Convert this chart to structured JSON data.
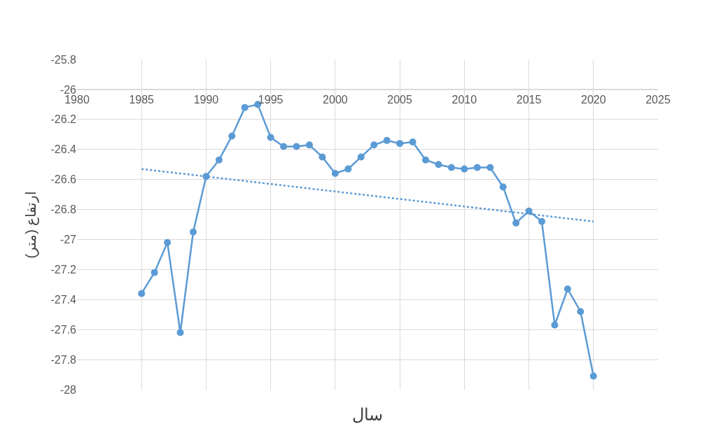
{
  "chart_data": {
    "type": "line",
    "xlabel": "سال",
    "ylabel": "ارتفاع (متر)",
    "x": [
      1985,
      1986,
      1987,
      1988,
      1989,
      1990,
      1991,
      1992,
      1993,
      1994,
      1995,
      1996,
      1997,
      1998,
      1999,
      2000,
      2001,
      2002,
      2003,
      2004,
      2005,
      2006,
      2007,
      2008,
      2009,
      2010,
      2011,
      2012,
      2013,
      2014,
      2015,
      2016,
      2017,
      2018,
      2019,
      2020
    ],
    "series": [
      {
        "color": "#5b9bd5",
        "marker": "circle",
        "line_style": "solid",
        "values": [
          -27.36,
          -27.22,
          -27.02,
          -27.62,
          -26.95,
          -26.58,
          -26.47,
          -26.31,
          -26.12,
          -26.1,
          -26.32,
          -26.38,
          -26.38,
          -26.37,
          -26.45,
          -26.56,
          -26.53,
          -26.45,
          -26.37,
          -26.34,
          -26.36,
          -26.35,
          -26.47,
          -26.5,
          -26.52,
          -26.53,
          -26.52,
          -26.52,
          -26.65,
          -26.89,
          -26.81,
          -26.88,
          -27.57,
          -27.33,
          -27.48,
          -27.91
        ]
      },
      {
        "type": "line",
        "color": "#5b9bd5",
        "marker": "none",
        "line_style": "dotted",
        "x": [
          1985,
          2020
        ],
        "values": [
          -26.53,
          -26.88
        ]
      }
    ],
    "xlim": [
      1980,
      2025
    ],
    "xticks": [
      1980,
      1985,
      1990,
      1995,
      2000,
      2005,
      2010,
      2015,
      2020,
      2025
    ],
    "ylim": [
      -28,
      -25.8
    ],
    "yticks": [
      -28,
      -27.8,
      -27.6,
      -27.4,
      -27.2,
      -27,
      -26.8,
      -26.6,
      -26.4,
      -26.2,
      -26,
      -25.8
    ],
    "grid": true
  }
}
